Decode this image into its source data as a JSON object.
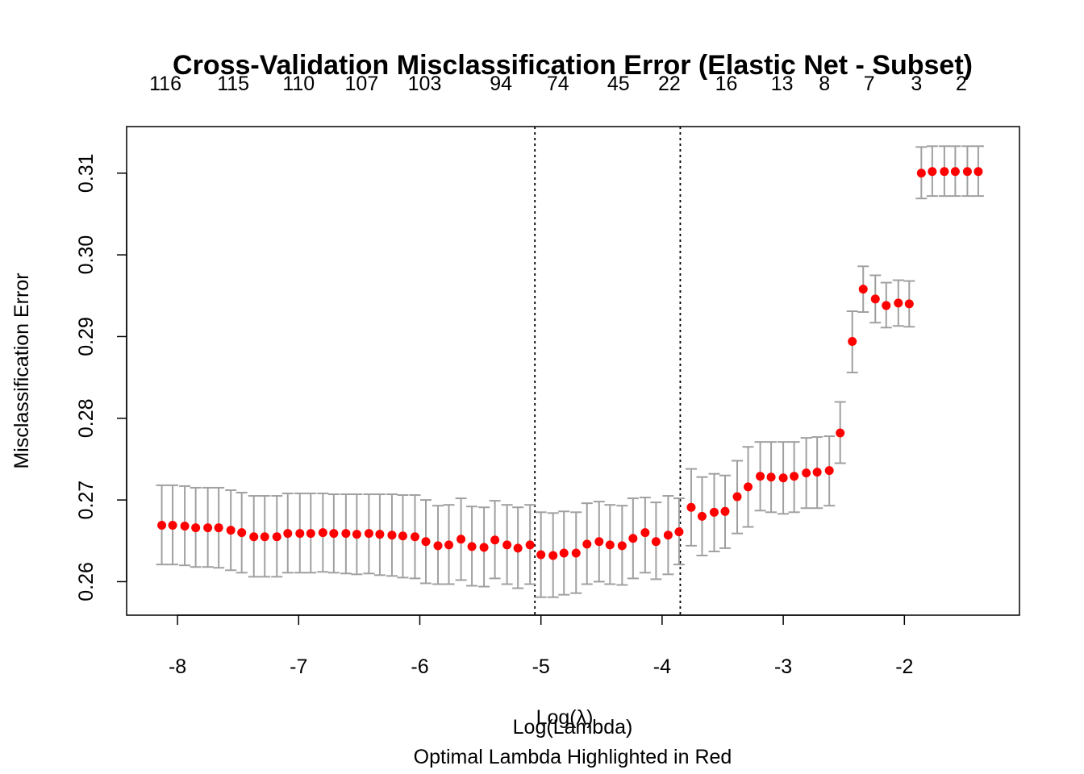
{
  "chart_data": {
    "type": "scatter",
    "title": "Cross-Validation Misclassification Error (Elastic Net - Subset)",
    "xlabel": "Log(λ)",
    "xlabel_overlay": "Log(Lambda)",
    "subtitle": "Optimal Lambda Highlighted in Red",
    "ylabel": "Misclassification Error",
    "xlim": [
      -8.42,
      -1.05
    ],
    "ylim": [
      0.2559,
      0.3157
    ],
    "x_ticks": [
      -8,
      -7,
      -6,
      -5,
      -4,
      -3,
      -2
    ],
    "x_tick_labels": [
      "-8",
      "-7",
      "-6",
      "-5",
      "-4",
      "-3",
      "-2"
    ],
    "y_ticks": [
      0.26,
      0.27,
      0.28,
      0.29,
      0.3,
      0.31
    ],
    "y_tick_labels": [
      "0.26",
      "0.27",
      "0.28",
      "0.29",
      "0.30",
      "0.31"
    ],
    "top_axis_positions": [
      -8.1,
      -7.54,
      -7.0,
      -6.48,
      -5.96,
      -5.33,
      -4.86,
      -4.36,
      -3.94,
      -3.47,
      -3.01,
      -2.66,
      -2.29,
      -1.9,
      -1.53
    ],
    "top_axis_labels": [
      "116",
      "115",
      "110",
      "107",
      "103",
      "94",
      "74",
      "45",
      "22",
      "16",
      "13",
      "8",
      "7",
      "3",
      "2"
    ],
    "reference_lines_x": [
      -5.05,
      -3.85
    ],
    "point_color": "#ff0000",
    "errorbar_color": "#a0a0a0",
    "series": [
      {
        "x": [
          -8.13,
          -8.04,
          -7.94,
          -7.85,
          -7.75,
          -7.66,
          -7.56,
          -7.47,
          -7.37,
          -7.28,
          -7.18,
          -7.09,
          -6.99,
          -6.9,
          -6.8,
          -6.71,
          -6.61,
          -6.52,
          -6.42,
          -6.33,
          -6.23,
          -6.14,
          -6.04,
          -5.95,
          -5.85,
          -5.76,
          -5.66,
          -5.57,
          -5.47,
          -5.38,
          -5.28,
          -5.19,
          -5.09,
          -5.0,
          -4.9,
          -4.81,
          -4.71,
          -4.62,
          -4.52,
          -4.43,
          -4.33,
          -4.24,
          -4.14,
          -4.05,
          -3.95,
          -3.86,
          -3.76,
          -3.67,
          -3.57,
          -3.48,
          -3.38,
          -3.29,
          -3.19,
          -3.1,
          -3.0,
          -2.91,
          -2.81,
          -2.72,
          -2.62,
          -2.53,
          -2.43,
          -2.34,
          -2.24,
          -2.15,
          -2.05,
          -1.96,
          -1.86,
          -1.77,
          -1.67,
          -1.58,
          -1.48,
          -1.39
        ],
        "y": [
          0.2669,
          0.2669,
          0.2668,
          0.2666,
          0.2666,
          0.2666,
          0.2663,
          0.266,
          0.2655,
          0.2655,
          0.2655,
          0.2659,
          0.2659,
          0.2659,
          0.266,
          0.2659,
          0.2659,
          0.2658,
          0.2659,
          0.2658,
          0.2657,
          0.2656,
          0.2655,
          0.2649,
          0.2644,
          0.2645,
          0.2652,
          0.2643,
          0.2642,
          0.2651,
          0.2645,
          0.2641,
          0.2645,
          0.2633,
          0.2632,
          0.2635,
          0.2635,
          0.2646,
          0.2649,
          0.2645,
          0.2644,
          0.2653,
          0.266,
          0.2649,
          0.2657,
          0.2661,
          0.2691,
          0.268,
          0.2685,
          0.2686,
          0.2704,
          0.2716,
          0.2729,
          0.2728,
          0.2727,
          0.2729,
          0.2733,
          0.2734,
          0.2736,
          0.2782,
          0.2894,
          0.2958,
          0.2946,
          0.2938,
          0.2941,
          0.294,
          0.31,
          0.3102,
          0.3102,
          0.3102,
          0.3102,
          0.3102
        ],
        "lower": [
          0.2621,
          0.2621,
          0.262,
          0.2618,
          0.2618,
          0.2617,
          0.2614,
          0.2611,
          0.2606,
          0.2606,
          0.2606,
          0.2611,
          0.2611,
          0.2611,
          0.2612,
          0.2611,
          0.261,
          0.2609,
          0.261,
          0.2608,
          0.2607,
          0.2605,
          0.2604,
          0.2598,
          0.2597,
          0.2597,
          0.2602,
          0.2595,
          0.2594,
          0.2604,
          0.2597,
          0.2592,
          0.2597,
          0.2581,
          0.2581,
          0.2584,
          0.2586,
          0.2597,
          0.26,
          0.2597,
          0.2596,
          0.2604,
          0.2611,
          0.2603,
          0.2609,
          0.2621,
          0.2644,
          0.2632,
          0.2637,
          0.2641,
          0.2659,
          0.2667,
          0.2687,
          0.2685,
          0.2683,
          0.2685,
          0.269,
          0.269,
          0.2693,
          0.2745,
          0.2856,
          0.293,
          0.2917,
          0.2911,
          0.2913,
          0.2912,
          0.3069,
          0.3072,
          0.3072,
          0.3072,
          0.3072,
          0.3072
        ],
        "upper": [
          0.2718,
          0.2718,
          0.2717,
          0.2715,
          0.2715,
          0.2715,
          0.2712,
          0.2709,
          0.2705,
          0.2705,
          0.2705,
          0.2708,
          0.2708,
          0.2708,
          0.2708,
          0.2707,
          0.2707,
          0.2707,
          0.2707,
          0.2707,
          0.2707,
          0.2706,
          0.2706,
          0.27,
          0.2693,
          0.2694,
          0.2702,
          0.2692,
          0.2691,
          0.2699,
          0.2694,
          0.2691,
          0.2694,
          0.2685,
          0.2684,
          0.2686,
          0.2685,
          0.2696,
          0.2698,
          0.2694,
          0.2693,
          0.2702,
          0.2703,
          0.2697,
          0.2705,
          0.2702,
          0.2738,
          0.2728,
          0.2732,
          0.273,
          0.2748,
          0.2765,
          0.2771,
          0.2771,
          0.2771,
          0.2771,
          0.2776,
          0.2777,
          0.2778,
          0.282,
          0.2931,
          0.2986,
          0.2975,
          0.2966,
          0.2969,
          0.2968,
          0.3132,
          0.3133,
          0.3133,
          0.3133,
          0.3133,
          0.3133
        ]
      }
    ]
  }
}
